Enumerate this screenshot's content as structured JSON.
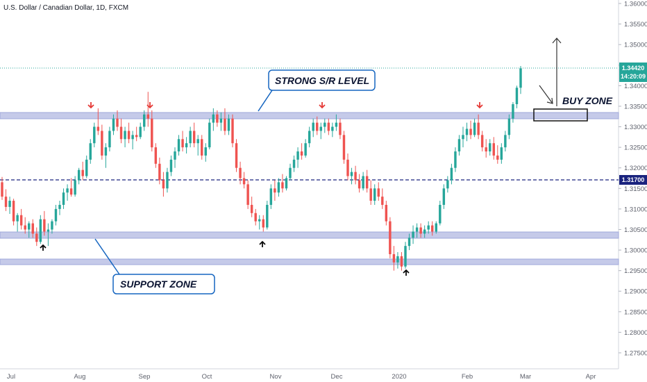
{
  "header": {
    "title": "U.S. Dollar / Canadian Dollar, 1D, FXCM"
  },
  "colors": {
    "up": "#26a69a",
    "down": "#ef5350",
    "zone_fill": "#c5cae9",
    "zone_line": "#9fa8da",
    "dashed_line": "#1a237e",
    "price_line": "#26a69a",
    "arrow_down": "#e53935",
    "arrow_up": "#0a0a0a",
    "callout_border": "#1565c0",
    "level_tag": "#1a237e",
    "price_tag": "#26a69a"
  },
  "annotations": {
    "strong_label": "STRONG S/R LEVEL",
    "support_label": "SUPPORT ZONE",
    "buy_label": "BUY ZONE"
  },
  "chart_data": {
    "type": "candlestick",
    "title": "U.S. Dollar / Canadian Dollar, 1D, FXCM",
    "y_ticks": [
      "1.36000",
      "1.35500",
      "1.35000",
      "1.34500",
      "1.34000",
      "1.33500",
      "1.33000",
      "1.32500",
      "1.32000",
      "1.31500",
      "1.31000",
      "1.30500",
      "1.30000",
      "1.29500",
      "1.29000",
      "1.28500",
      "1.28000",
      "1.27500"
    ],
    "ylim": [
      1.2725,
      1.361
    ],
    "x_ticks": [
      "Jul",
      "Aug",
      "Sep",
      "Oct",
      "Nov",
      "Dec",
      "2020",
      "Feb",
      "Mar",
      "Apr"
    ],
    "current_price": "1.34420",
    "countdown": "14:20:09",
    "key_level": "1.31700",
    "candles": [
      [
        1.3165,
        1.3178,
        1.3122,
        1.313
      ],
      [
        1.313,
        1.3148,
        1.3095,
        1.3105
      ],
      [
        1.3105,
        1.313,
        1.3088,
        1.312
      ],
      [
        1.312,
        1.3125,
        1.306,
        1.307
      ],
      [
        1.307,
        1.309,
        1.3045,
        1.3085
      ],
      [
        1.3085,
        1.31,
        1.305,
        1.306
      ],
      [
        1.306,
        1.308,
        1.304,
        1.305
      ],
      [
        1.305,
        1.307,
        1.303,
        1.3065
      ],
      [
        1.3065,
        1.3075,
        1.303,
        1.304
      ],
      [
        1.304,
        1.3055,
        1.301,
        1.302
      ],
      [
        1.302,
        1.3085,
        1.3015,
        1.3075
      ],
      [
        1.3075,
        1.3095,
        1.3035,
        1.3045
      ],
      [
        1.3045,
        1.3065,
        1.301,
        1.305
      ],
      [
        1.305,
        1.3075,
        1.304,
        1.307
      ],
      [
        1.307,
        1.311,
        1.306,
        1.31
      ],
      [
        1.31,
        1.312,
        1.3085,
        1.311
      ],
      [
        1.311,
        1.315,
        1.31,
        1.314
      ],
      [
        1.314,
        1.316,
        1.312,
        1.315
      ],
      [
        1.315,
        1.3175,
        1.313,
        1.3135
      ],
      [
        1.3135,
        1.318,
        1.313,
        1.317
      ],
      [
        1.317,
        1.32,
        1.316,
        1.3195
      ],
      [
        1.3195,
        1.3215,
        1.317,
        1.318
      ],
      [
        1.318,
        1.323,
        1.3175,
        1.322
      ],
      [
        1.322,
        1.327,
        1.321,
        1.326
      ],
      [
        1.326,
        1.331,
        1.325,
        1.33
      ],
      [
        1.33,
        1.3345,
        1.328,
        1.329
      ],
      [
        1.329,
        1.3305,
        1.322,
        1.323
      ],
      [
        1.323,
        1.326,
        1.32,
        1.325
      ],
      [
        1.325,
        1.33,
        1.324,
        1.329
      ],
      [
        1.329,
        1.333,
        1.328,
        1.332
      ],
      [
        1.332,
        1.334,
        1.329,
        1.33
      ],
      [
        1.33,
        1.332,
        1.326,
        1.327
      ],
      [
        1.327,
        1.33,
        1.325,
        1.329
      ],
      [
        1.329,
        1.331,
        1.326,
        1.327
      ],
      [
        1.327,
        1.329,
        1.3245,
        1.328
      ],
      [
        1.328,
        1.33,
        1.3265,
        1.3275
      ],
      [
        1.3275,
        1.331,
        1.327,
        1.33
      ],
      [
        1.33,
        1.334,
        1.329,
        1.333
      ],
      [
        1.333,
        1.3385,
        1.33,
        1.332
      ],
      [
        1.332,
        1.334,
        1.324,
        1.325
      ],
      [
        1.325,
        1.326,
        1.32,
        1.321
      ],
      [
        1.321,
        1.3225,
        1.316,
        1.317
      ],
      [
        1.317,
        1.319,
        1.313,
        1.315
      ],
      [
        1.315,
        1.32,
        1.314,
        1.319
      ],
      [
        1.319,
        1.323,
        1.318,
        1.322
      ],
      [
        1.322,
        1.325,
        1.32,
        1.324
      ],
      [
        1.324,
        1.328,
        1.323,
        1.327
      ],
      [
        1.327,
        1.329,
        1.324,
        1.325
      ],
      [
        1.325,
        1.3275,
        1.3235,
        1.326
      ],
      [
        1.326,
        1.33,
        1.325,
        1.329
      ],
      [
        1.329,
        1.331,
        1.325,
        1.326
      ],
      [
        1.326,
        1.328,
        1.323,
        1.327
      ],
      [
        1.327,
        1.328,
        1.322,
        1.323
      ],
      [
        1.323,
        1.326,
        1.3215,
        1.325
      ],
      [
        1.325,
        1.332,
        1.3245,
        1.331
      ],
      [
        1.331,
        1.3345,
        1.329,
        1.333
      ],
      [
        1.333,
        1.334,
        1.33,
        1.331
      ],
      [
        1.331,
        1.3335,
        1.329,
        1.332
      ],
      [
        1.332,
        1.3345,
        1.328,
        1.329
      ],
      [
        1.329,
        1.333,
        1.328,
        1.332
      ],
      [
        1.332,
        1.333,
        1.325,
        1.326
      ],
      [
        1.326,
        1.327,
        1.319,
        1.32
      ],
      [
        1.32,
        1.3215,
        1.316,
        1.3175
      ],
      [
        1.3175,
        1.319,
        1.315,
        1.316
      ],
      [
        1.316,
        1.317,
        1.31,
        1.311
      ],
      [
        1.311,
        1.313,
        1.308,
        1.309
      ],
      [
        1.309,
        1.31,
        1.306,
        1.307
      ],
      [
        1.307,
        1.3085,
        1.305,
        1.3075
      ],
      [
        1.3075,
        1.3085,
        1.3045,
        1.3055
      ],
      [
        1.3055,
        1.312,
        1.305,
        1.311
      ],
      [
        1.311,
        1.316,
        1.31,
        1.315
      ],
      [
        1.315,
        1.317,
        1.312,
        1.314
      ],
      [
        1.314,
        1.3175,
        1.313,
        1.3165
      ],
      [
        1.3165,
        1.3185,
        1.314,
        1.315
      ],
      [
        1.315,
        1.318,
        1.3145,
        1.3175
      ],
      [
        1.3175,
        1.321,
        1.317,
        1.32
      ],
      [
        1.32,
        1.323,
        1.319,
        1.322
      ],
      [
        1.322,
        1.325,
        1.32,
        1.324
      ],
      [
        1.324,
        1.326,
        1.322,
        1.323
      ],
      [
        1.323,
        1.327,
        1.3225,
        1.326
      ],
      [
        1.326,
        1.33,
        1.325,
        1.329
      ],
      [
        1.329,
        1.332,
        1.3275,
        1.331
      ],
      [
        1.331,
        1.3325,
        1.328,
        1.329
      ],
      [
        1.329,
        1.331,
        1.327,
        1.33
      ],
      [
        1.33,
        1.332,
        1.3285,
        1.331
      ],
      [
        1.331,
        1.332,
        1.328,
        1.329
      ],
      [
        1.329,
        1.331,
        1.3275,
        1.33
      ],
      [
        1.33,
        1.333,
        1.329,
        1.331
      ],
      [
        1.331,
        1.332,
        1.327,
        1.328
      ],
      [
        1.328,
        1.329,
        1.321,
        1.322
      ],
      [
        1.322,
        1.3235,
        1.317,
        1.318
      ],
      [
        1.318,
        1.32,
        1.316,
        1.319
      ],
      [
        1.319,
        1.3205,
        1.316,
        1.317
      ],
      [
        1.317,
        1.3185,
        1.314,
        1.315
      ],
      [
        1.315,
        1.319,
        1.3145,
        1.318
      ],
      [
        1.318,
        1.3195,
        1.314,
        1.315
      ],
      [
        1.315,
        1.317,
        1.311,
        1.312
      ],
      [
        1.312,
        1.316,
        1.311,
        1.315
      ],
      [
        1.315,
        1.3165,
        1.312,
        1.313
      ],
      [
        1.313,
        1.315,
        1.31,
        1.311
      ],
      [
        1.311,
        1.312,
        1.306,
        1.307
      ],
      [
        1.307,
        1.308,
        1.298,
        1.299
      ],
      [
        1.299,
        1.301,
        1.295,
        1.297
      ],
      [
        1.297,
        1.2995,
        1.2955,
        1.2985
      ],
      [
        1.2985,
        1.2995,
        1.295,
        1.296
      ],
      [
        1.296,
        1.302,
        1.2955,
        1.301
      ],
      [
        1.301,
        1.304,
        1.3,
        1.303
      ],
      [
        1.303,
        1.306,
        1.3015,
        1.3045
      ],
      [
        1.3045,
        1.3065,
        1.303,
        1.3055
      ],
      [
        1.3055,
        1.3065,
        1.303,
        1.304
      ],
      [
        1.304,
        1.306,
        1.303,
        1.305
      ],
      [
        1.305,
        1.307,
        1.304,
        1.306
      ],
      [
        1.306,
        1.307,
        1.3035,
        1.3045
      ],
      [
        1.3045,
        1.307,
        1.304,
        1.3065
      ],
      [
        1.3065,
        1.312,
        1.306,
        1.311
      ],
      [
        1.311,
        1.316,
        1.31,
        1.315
      ],
      [
        1.315,
        1.318,
        1.314,
        1.317
      ],
      [
        1.317,
        1.321,
        1.316,
        1.32
      ],
      [
        1.32,
        1.325,
        1.319,
        1.324
      ],
      [
        1.324,
        1.328,
        1.323,
        1.327
      ],
      [
        1.327,
        1.33,
        1.325,
        1.328
      ],
      [
        1.328,
        1.331,
        1.3265,
        1.3295
      ],
      [
        1.3295,
        1.3315,
        1.327,
        1.328
      ],
      [
        1.328,
        1.332,
        1.3275,
        1.331
      ],
      [
        1.331,
        1.333,
        1.327,
        1.328
      ],
      [
        1.328,
        1.329,
        1.324,
        1.325
      ],
      [
        1.325,
        1.327,
        1.3225,
        1.324
      ],
      [
        1.324,
        1.327,
        1.323,
        1.326
      ],
      [
        1.326,
        1.3275,
        1.322,
        1.323
      ],
      [
        1.323,
        1.3255,
        1.321,
        1.322
      ],
      [
        1.322,
        1.326,
        1.321,
        1.325
      ],
      [
        1.325,
        1.329,
        1.324,
        1.328
      ],
      [
        1.328,
        1.333,
        1.327,
        1.332
      ],
      [
        1.332,
        1.336,
        1.331,
        1.3355
      ],
      [
        1.3355,
        1.34,
        1.3345,
        1.3395
      ],
      [
        1.3395,
        1.3448,
        1.338,
        1.3442
      ]
    ]
  }
}
